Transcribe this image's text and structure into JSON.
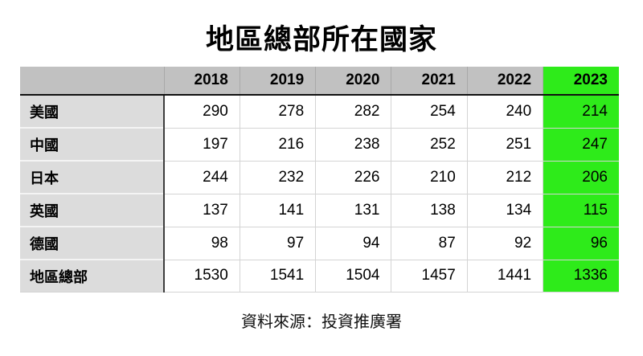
{
  "colors": {
    "header_bg": "#c1c1c1",
    "label_bg": "#dcdcdc",
    "highlight_green": "#2eeb1a"
  },
  "chart_data": {
    "type": "table",
    "title": "地區總部所在國家",
    "columns": [
      "2018",
      "2019",
      "2020",
      "2021",
      "2022",
      "2023"
    ],
    "highlighted_column": "2023",
    "rows": [
      {
        "label": "美國",
        "values": [
          290,
          278,
          282,
          254,
          240,
          214
        ]
      },
      {
        "label": "中國",
        "values": [
          197,
          216,
          238,
          252,
          251,
          247
        ]
      },
      {
        "label": "日本",
        "values": [
          244,
          232,
          226,
          210,
          212,
          206
        ]
      },
      {
        "label": "英國",
        "values": [
          137,
          141,
          131,
          138,
          134,
          115
        ]
      },
      {
        "label": "德國",
        "values": [
          98,
          97,
          94,
          87,
          92,
          96
        ]
      },
      {
        "label": "地區總部",
        "values": [
          1530,
          1541,
          1504,
          1457,
          1441,
          1336
        ]
      }
    ],
    "source": "資料來源：投資推廣署",
    "layout": {
      "legend": "none",
      "grid": "on"
    }
  }
}
